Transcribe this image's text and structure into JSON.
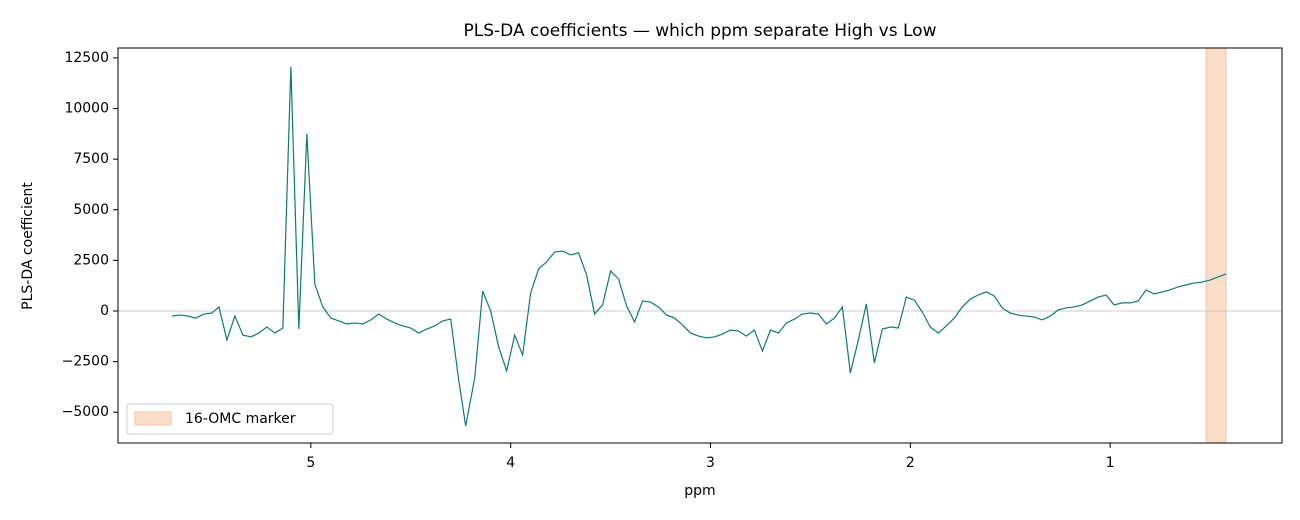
{
  "chart_data": {
    "type": "line",
    "title": "PLS-DA coefficients — which ppm separate High vs Low",
    "x_label": "ppm",
    "y_label": "PLS-DA coefficient",
    "x": [
      5.695,
      5.655,
      5.615,
      5.575,
      5.535,
      5.495,
      5.46,
      5.42,
      5.38,
      5.34,
      5.3,
      5.26,
      5.22,
      5.18,
      5.14,
      5.1,
      5.06,
      5.02,
      4.98,
      4.94,
      4.9,
      4.86,
      4.82,
      4.78,
      4.74,
      4.7,
      4.66,
      4.62,
      4.58,
      4.54,
      4.5,
      4.46,
      4.42,
      4.38,
      4.34,
      4.3,
      4.26,
      4.225,
      4.18,
      4.14,
      4.1,
      4.06,
      4.02,
      3.98,
      3.94,
      3.9,
      3.86,
      3.82,
      3.78,
      3.74,
      3.7,
      3.66,
      3.62,
      3.58,
      3.54,
      3.5,
      3.46,
      3.42,
      3.38,
      3.34,
      3.3,
      3.26,
      3.22,
      3.18,
      3.14,
      3.1,
      3.06,
      3.02,
      2.98,
      2.94,
      2.9,
      2.86,
      2.82,
      2.78,
      2.74,
      2.7,
      2.66,
      2.62,
      2.58,
      2.54,
      2.5,
      2.46,
      2.42,
      2.38,
      2.34,
      2.3,
      2.26,
      2.22,
      2.18,
      2.14,
      2.1,
      2.06,
      2.02,
      1.98,
      1.94,
      1.9,
      1.86,
      1.82,
      1.78,
      1.74,
      1.7,
      1.66,
      1.62,
      1.58,
      1.54,
      1.5,
      1.46,
      1.42,
      1.38,
      1.34,
      1.3,
      1.26,
      1.22,
      1.18,
      1.14,
      1.1,
      1.06,
      1.02,
      0.98,
      0.94,
      0.9,
      0.86,
      0.82,
      0.78,
      0.74,
      0.7,
      0.66,
      0.62,
      0.58,
      0.54,
      0.5,
      0.46,
      0.42
    ],
    "values": [
      -250,
      -200,
      -250,
      -350,
      -150,
      -100,
      200,
      -1430,
      -250,
      -1190,
      -1280,
      -1090,
      -790,
      -1090,
      -840,
      12060,
      -890,
      8750,
      1330,
      200,
      -350,
      -490,
      -640,
      -590,
      -640,
      -440,
      -150,
      -400,
      -590,
      -740,
      -840,
      -1090,
      -890,
      -740,
      -490,
      -400,
      -3410,
      -5680,
      -3310,
      990,
      0,
      -1780,
      -2960,
      -1190,
      -2170,
      890,
      2080,
      2420,
      2910,
      2960,
      2770,
      2870,
      1780,
      -150,
      300,
      1980,
      1580,
      250,
      -540,
      490,
      440,
      200,
      -200,
      -350,
      -690,
      -1090,
      -1240,
      -1330,
      -1280,
      -1140,
      -940,
      -990,
      -1240,
      -940,
      -1980,
      -940,
      -1090,
      -590,
      -400,
      -150,
      -100,
      -150,
      -640,
      -350,
      200,
      -3060,
      -1430,
      350,
      -2570,
      -890,
      -790,
      -840,
      690,
      540,
      -50,
      -790,
      -1090,
      -740,
      -350,
      200,
      590,
      790,
      940,
      740,
      150,
      -100,
      -200,
      -250,
      -300,
      -440,
      -250,
      50,
      150,
      200,
      300,
      490,
      690,
      790,
      300,
      400,
      400,
      490,
      1040,
      840,
      940,
      1040,
      1190,
      1290,
      1380,
      1430,
      1530,
      1680,
      1830
    ],
    "color": "#0f7a72",
    "hline": 0,
    "hline_color": "#cccccc",
    "span": {
      "x": [
        0.52,
        0.42
      ],
      "label": "16-OMC marker",
      "color": "#f5c6a5"
    },
    "legend": "lower left",
    "xlim": [
      5.965,
      0.14
    ],
    "xticks": [
      5,
      4,
      3,
      2,
      1
    ],
    "ylim": [
      -6520,
      12990
    ],
    "yticks": [
      {
        "value": -5000,
        "label": "−5000"
      },
      {
        "value": -2500,
        "label": "−2500"
      },
      0,
      2500,
      5000,
      7500,
      10000,
      12500
    ]
  }
}
